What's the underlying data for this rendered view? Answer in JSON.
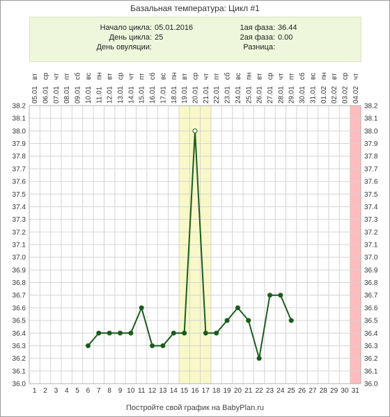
{
  "page": {
    "title": "Базальная температура: Цикл #1",
    "footer": "Постройте свой график на BabyPlan.ru"
  },
  "info": {
    "cycle_start_label": "Начало цикла:",
    "cycle_start_value": "05.01.2016",
    "cycle_day_label": "День цикла:",
    "cycle_day_value": "25",
    "ovulation_day_label": "День овуляции:",
    "ovulation_day_value": "",
    "phase1_label": "1ая фаза:",
    "phase1_value": "36.44",
    "phase2_label": "2ая фаза:",
    "phase2_value": "0.00",
    "difference_label": "Разница:",
    "difference_value": ""
  },
  "chart_data": {
    "type": "line",
    "title": "Базальная температура: Цикл #1",
    "xlabel": "",
    "ylabel": "",
    "ylim": [
      36.0,
      38.2
    ],
    "ystep": 0.1,
    "x": [
      1,
      2,
      3,
      4,
      5,
      6,
      7,
      8,
      9,
      10,
      11,
      12,
      13,
      14,
      15,
      16,
      17,
      18,
      19,
      20,
      21,
      22,
      23,
      24,
      25,
      26,
      27,
      28,
      29,
      30,
      31
    ],
    "dates": [
      "05.01",
      "06.01",
      "07.01",
      "08.01",
      "09.01",
      "10.01",
      "11.01",
      "12.01",
      "13.01",
      "14.01",
      "15.01",
      "16.01",
      "17.01",
      "18.01",
      "19.01",
      "20.01",
      "21.01",
      "22.01",
      "23.01",
      "24.01",
      "25.01",
      "26.01",
      "27.01",
      "28.01",
      "29.01",
      "30.01",
      "31.01",
      "01.02",
      "02.02",
      "03.02",
      "04.02"
    ],
    "weekdays": [
      "вт",
      "ср",
      "чт",
      "пт",
      "сб",
      "вс",
      "пн",
      "вт",
      "ср",
      "чт",
      "пт",
      "сб",
      "вс",
      "пн",
      "вт",
      "ср",
      "чт",
      "пт",
      "сб",
      "вс",
      "пн",
      "вт",
      "ср",
      "чт",
      "пт",
      "сб",
      "вс",
      "пн",
      "вт",
      "ср",
      "чт"
    ],
    "series": [
      {
        "color": "#1a5c1a",
        "values": [
          null,
          null,
          null,
          null,
          null,
          36.3,
          36.4,
          36.4,
          36.4,
          36.4,
          36.6,
          36.3,
          36.3,
          36.4,
          36.4,
          38.0,
          36.4,
          36.4,
          36.5,
          36.6,
          36.5,
          36.2,
          36.7,
          36.7,
          36.5,
          null,
          null,
          null,
          null,
          null,
          null
        ]
      }
    ],
    "highlight_days": [
      15,
      16,
      17
    ],
    "highlight_color": "#f8f8c8",
    "open_marker_day": 16,
    "end_marker_day": 31,
    "end_marker_color": "#ffbcbc",
    "grid": true
  }
}
